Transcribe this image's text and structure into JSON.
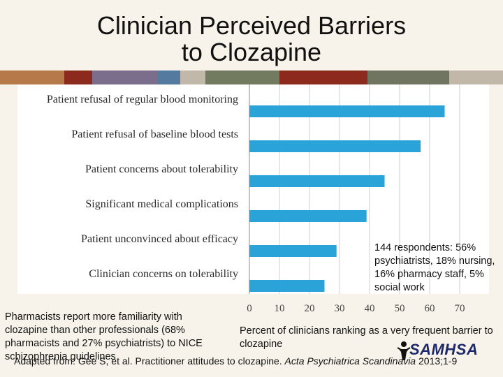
{
  "title_line1": "Clinician Perceived Barriers",
  "title_line2": "to Clozapine",
  "colors": {
    "bar": "#2aa3d9",
    "strip": [
      "#b5794a",
      "#8c2b1d",
      "#7b6e8d",
      "#547aa0",
      "#c2b8aa",
      "#727b5f",
      "#8c2b1d",
      "#6f7560",
      "#c2b8aa"
    ]
  },
  "chart_data": {
    "type": "bar",
    "orientation": "horizontal",
    "categories": [
      "Patient refusal of  regular blood monitoring",
      "Patient refusal of  baseline blood tests",
      "Patient concerns about tolerability",
      "Significant medical complications",
      "Patient unconvinced about efficacy",
      "Clinician concerns on tolerability"
    ],
    "values": [
      65,
      57,
      45,
      39,
      29,
      25
    ],
    "xlim": [
      0,
      70
    ],
    "xticks": [
      "0",
      "10",
      "20",
      "30",
      "40",
      "50",
      "60",
      "70"
    ],
    "grid": true
  },
  "notes": {
    "respondents": "144 respondents: 56% psychiatrists, 18% nursing, 16% pharmacy staff, 5% social work",
    "pharmacists": "Pharmacists report more familiarity with clozapine than other professionals (68% pharmacists and 27% psychiatrists) to NICE schizophrenia guidelines",
    "xlabel": "Percent of clinicians ranking as a very frequent barrier to clozapine"
  },
  "citation": {
    "prefix": "Adapted from: Gee S, et al. Practitioner attitudes to clozapine. ",
    "journal": "Acta Psychiatrica Scandinavia",
    "suffix": " 2013;1-9"
  },
  "logo_text": "SAMHSA"
}
